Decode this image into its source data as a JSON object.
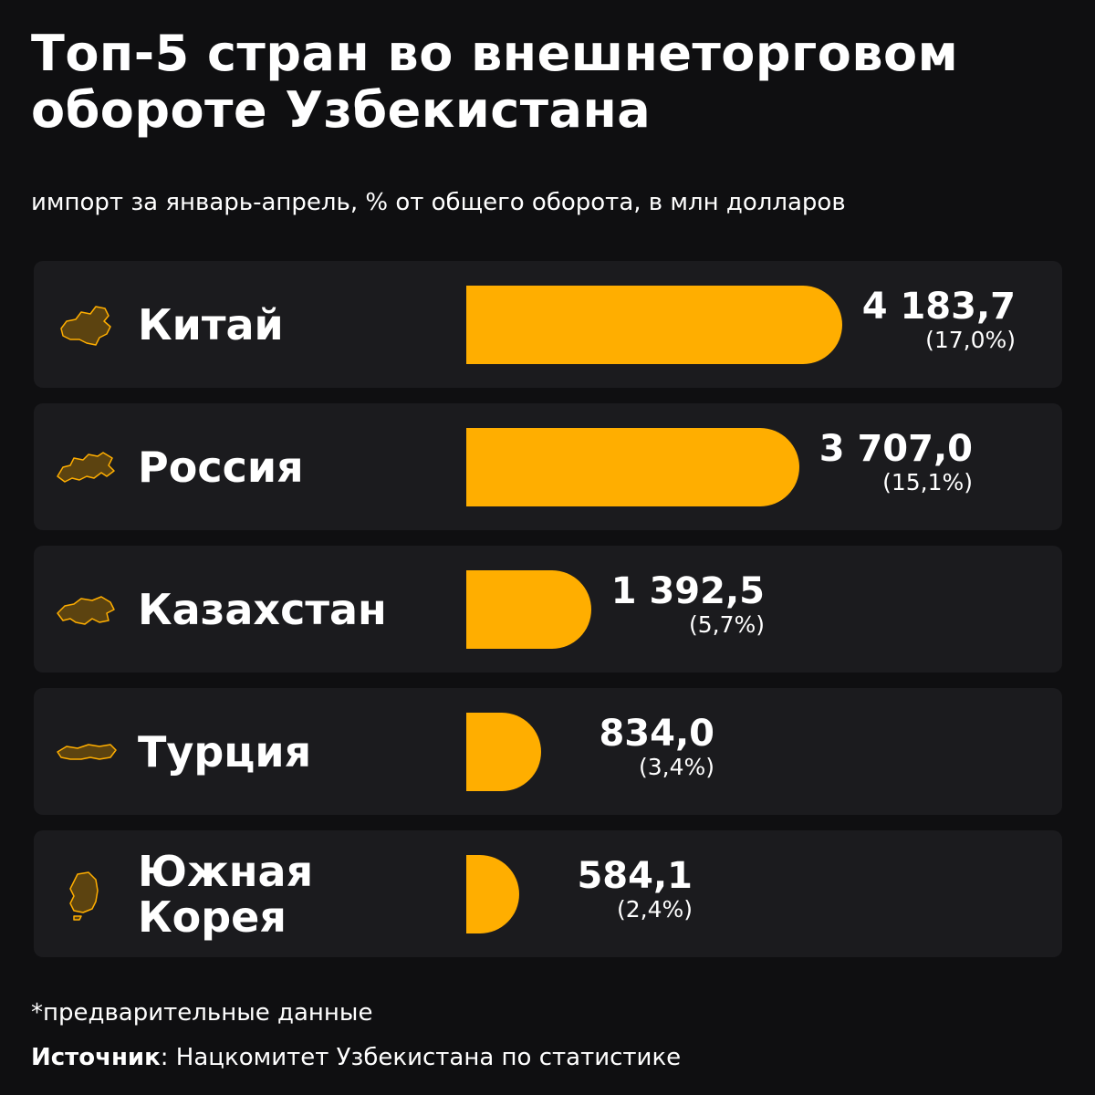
{
  "title": "Топ-5 стран во внешнеторговом обороте Узбекистана",
  "subtitle": "импорт за январь-апрель, % от общего оборота, в млн долларов",
  "colors": {
    "background": "#0f0f11",
    "card": "#1b1b1e",
    "bar": "#ffae00",
    "icon_fill": "#5c4310",
    "icon_stroke": "#ffae00"
  },
  "chart_data": {
    "type": "bar",
    "orientation": "horizontal",
    "title": "Топ-5 стран во внешнеторговом обороте Узбекистана",
    "subtitle": "импорт за январь-апрель, % от общего оборота, в млн долларов",
    "categories": [
      "Китай",
      "Россия",
      "Казахстан",
      "Турция",
      "Южная Корея"
    ],
    "values": [
      4183.7,
      3707.0,
      1392.5,
      834.0,
      584.1
    ],
    "value_labels": [
      "4 183,7",
      "3 707,0",
      "1 392,5",
      "834,0",
      "584,1"
    ],
    "percent_labels": [
      "(17,0%)",
      "(15,1%)",
      "(5,7%)",
      "(3,4%)",
      "(2,4%)"
    ],
    "icons": [
      "china-map-icon",
      "russia-map-icon",
      "kazakhstan-map-icon",
      "turkey-map-icon",
      "south-korea-map-icon"
    ],
    "xlim": [
      0,
      4183.7
    ],
    "grid": false
  },
  "footnote": "*предварительные данные",
  "source": {
    "label": "Источник",
    "text": ": Нацкомитет Узбекистана по статистике"
  }
}
